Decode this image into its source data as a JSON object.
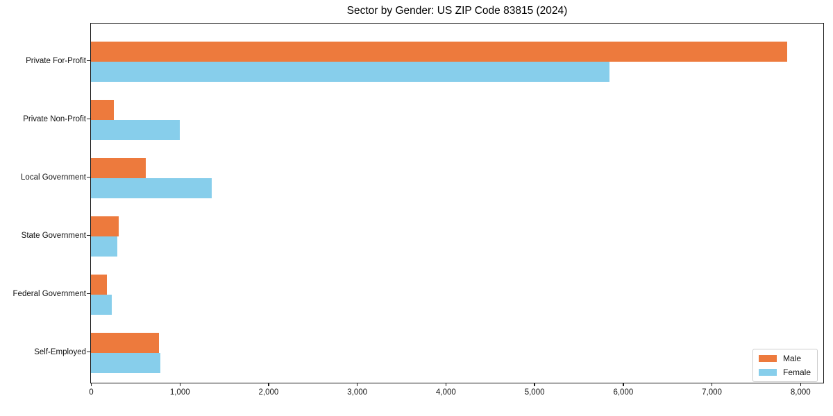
{
  "chart_data": {
    "type": "bar",
    "orientation": "horizontal",
    "title": "Sector by Gender: US ZIP Code 83815 (2024)",
    "categories": [
      "Private For-Profit",
      "Private Non-Profit",
      "Local Government",
      "State Government",
      "Federal Government",
      "Self-Employed"
    ],
    "series": [
      {
        "name": "Male",
        "color": "#ED7A3D",
        "values": [
          7850,
          260,
          620,
          315,
          180,
          765
        ]
      },
      {
        "name": "Female",
        "color": "#87CEEB",
        "values": [
          5850,
          1000,
          1360,
          300,
          235,
          785
        ]
      }
    ],
    "xlabel": "",
    "ylabel": "",
    "xlim": [
      0,
      8260
    ],
    "xticks": [
      0,
      1000,
      2000,
      3000,
      4000,
      5000,
      6000,
      7000,
      8000
    ],
    "xtick_labels": [
      "0",
      "1,000",
      "2,000",
      "3,000",
      "4,000",
      "5,000",
      "6,000",
      "7,000",
      "8,000"
    ],
    "legend_position": "lower right",
    "grid": false,
    "colors": {
      "background": "#ffffff",
      "spine": "#1a1a1a",
      "text": "#111111"
    }
  }
}
